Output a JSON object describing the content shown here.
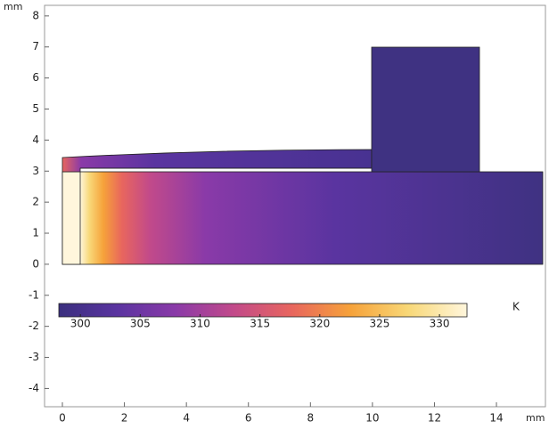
{
  "chart_data": {
    "type": "surface",
    "x_unit": "mm",
    "y_unit": "mm",
    "xlim": [
      -0.575,
      15.58
    ],
    "ylim": [
      -4.59,
      8.34
    ],
    "xticks": [
      0,
      2,
      4,
      6,
      8,
      10,
      12,
      14
    ],
    "yticks": [
      -4,
      -3,
      -2,
      -1,
      0,
      1,
      2,
      3,
      4,
      5,
      6,
      7,
      8
    ],
    "colorbar": {
      "unit": "K",
      "lim": [
        298.2,
        332.3
      ],
      "ticks": [
        300,
        305,
        310,
        315,
        320,
        325,
        330
      ],
      "colors": [
        "#3a2f7e",
        "#5a34a0",
        "#8a3aa8",
        "#c24a8a",
        "#e8665e",
        "#f6a23a",
        "#f8d878",
        "#fff6dc"
      ]
    }
  }
}
